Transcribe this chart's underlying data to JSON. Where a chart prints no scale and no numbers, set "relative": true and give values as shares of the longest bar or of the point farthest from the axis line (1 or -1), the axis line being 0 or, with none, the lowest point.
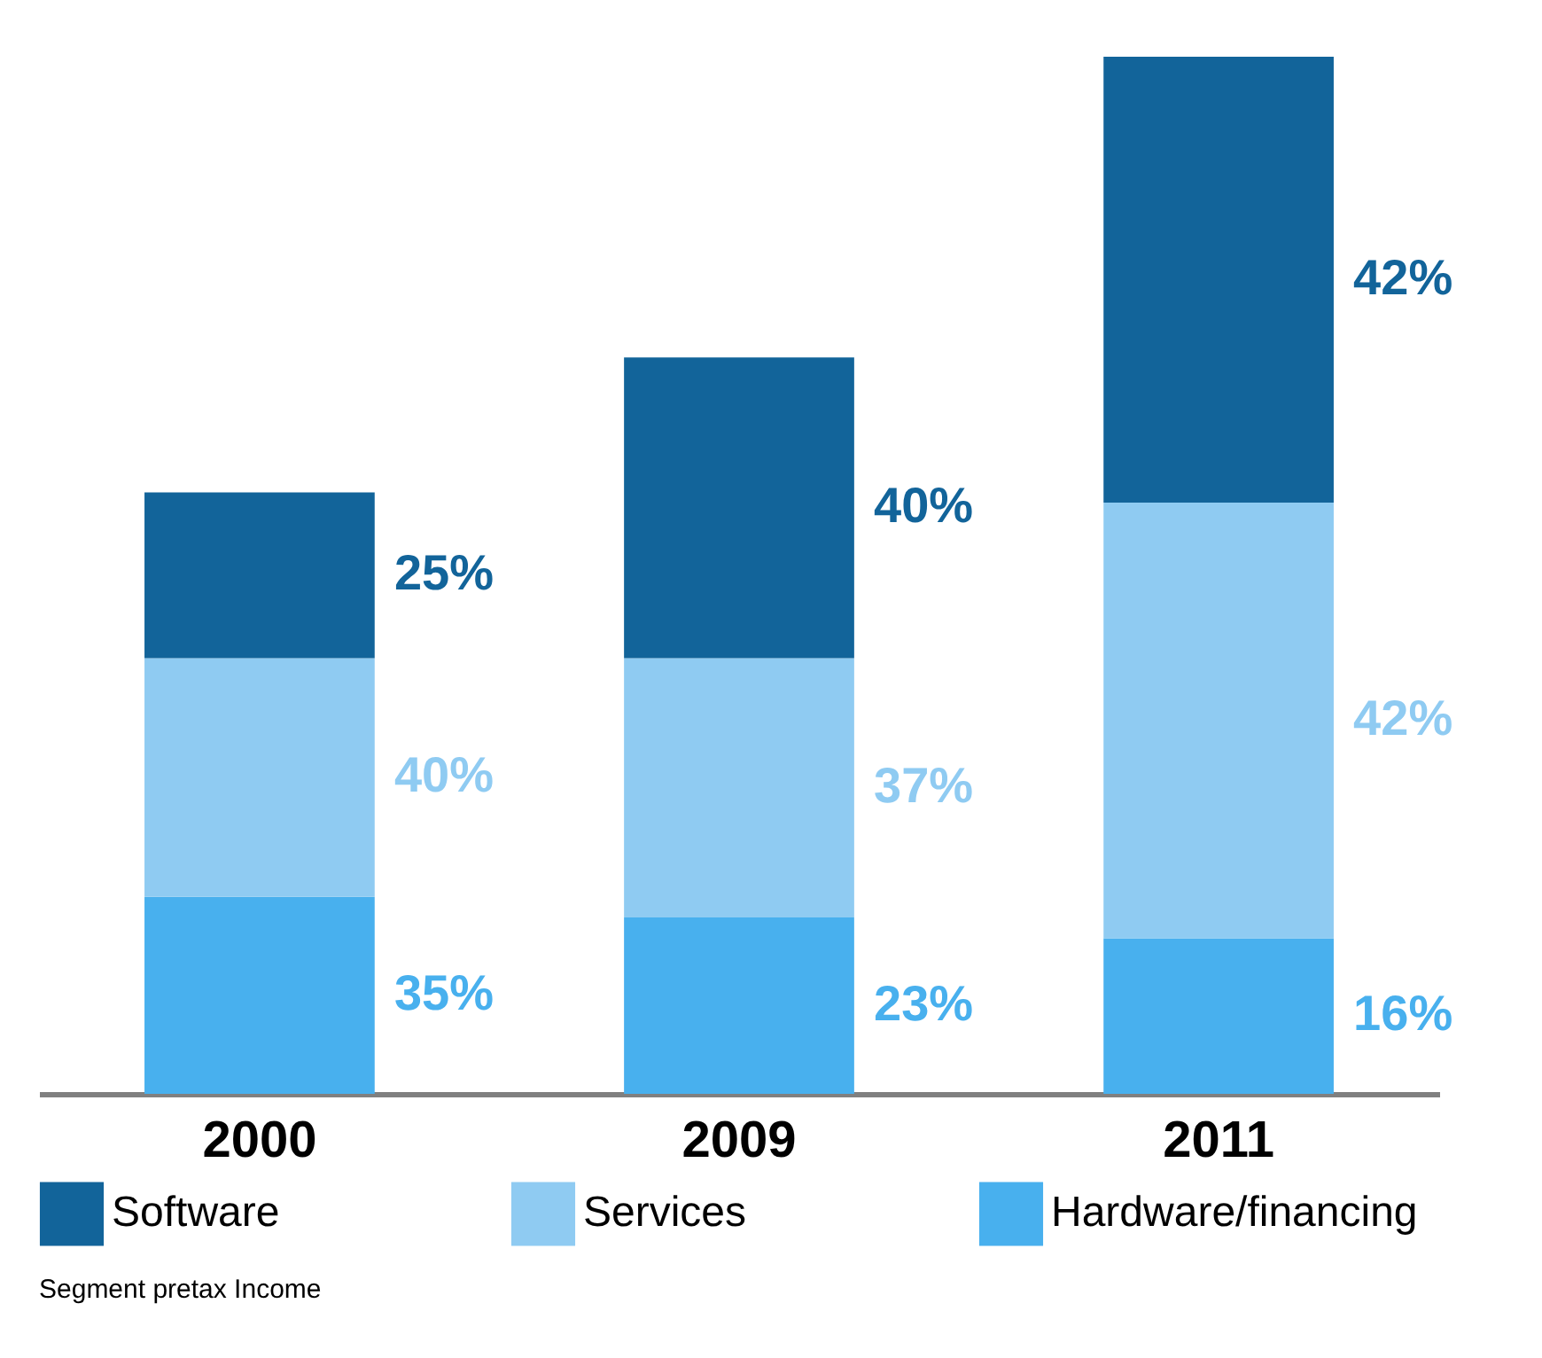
{
  "chart_data": {
    "type": "bar",
    "stacked": true,
    "relative": true,
    "categories": [
      "2000",
      "2009",
      "2011"
    ],
    "series": [
      {
        "name": "Hardware/financing",
        "color": "#48b0ee",
        "values": [
          0.19,
          0.17,
          0.15
        ]
      },
      {
        "name": "Services",
        "color": "#8fcbf2",
        "values": [
          0.23,
          0.25,
          0.42
        ]
      },
      {
        "name": "Software",
        "color": "#12649a",
        "values": [
          0.16,
          0.29,
          0.43
        ]
      }
    ],
    "legend": "bottom",
    "annotations": [
      "35%",
      "40%",
      "25%",
      "23%",
      "37%",
      "40%",
      "16%",
      "42%",
      "42%",
      "Segment pretax Income"
    ]
  }
}
